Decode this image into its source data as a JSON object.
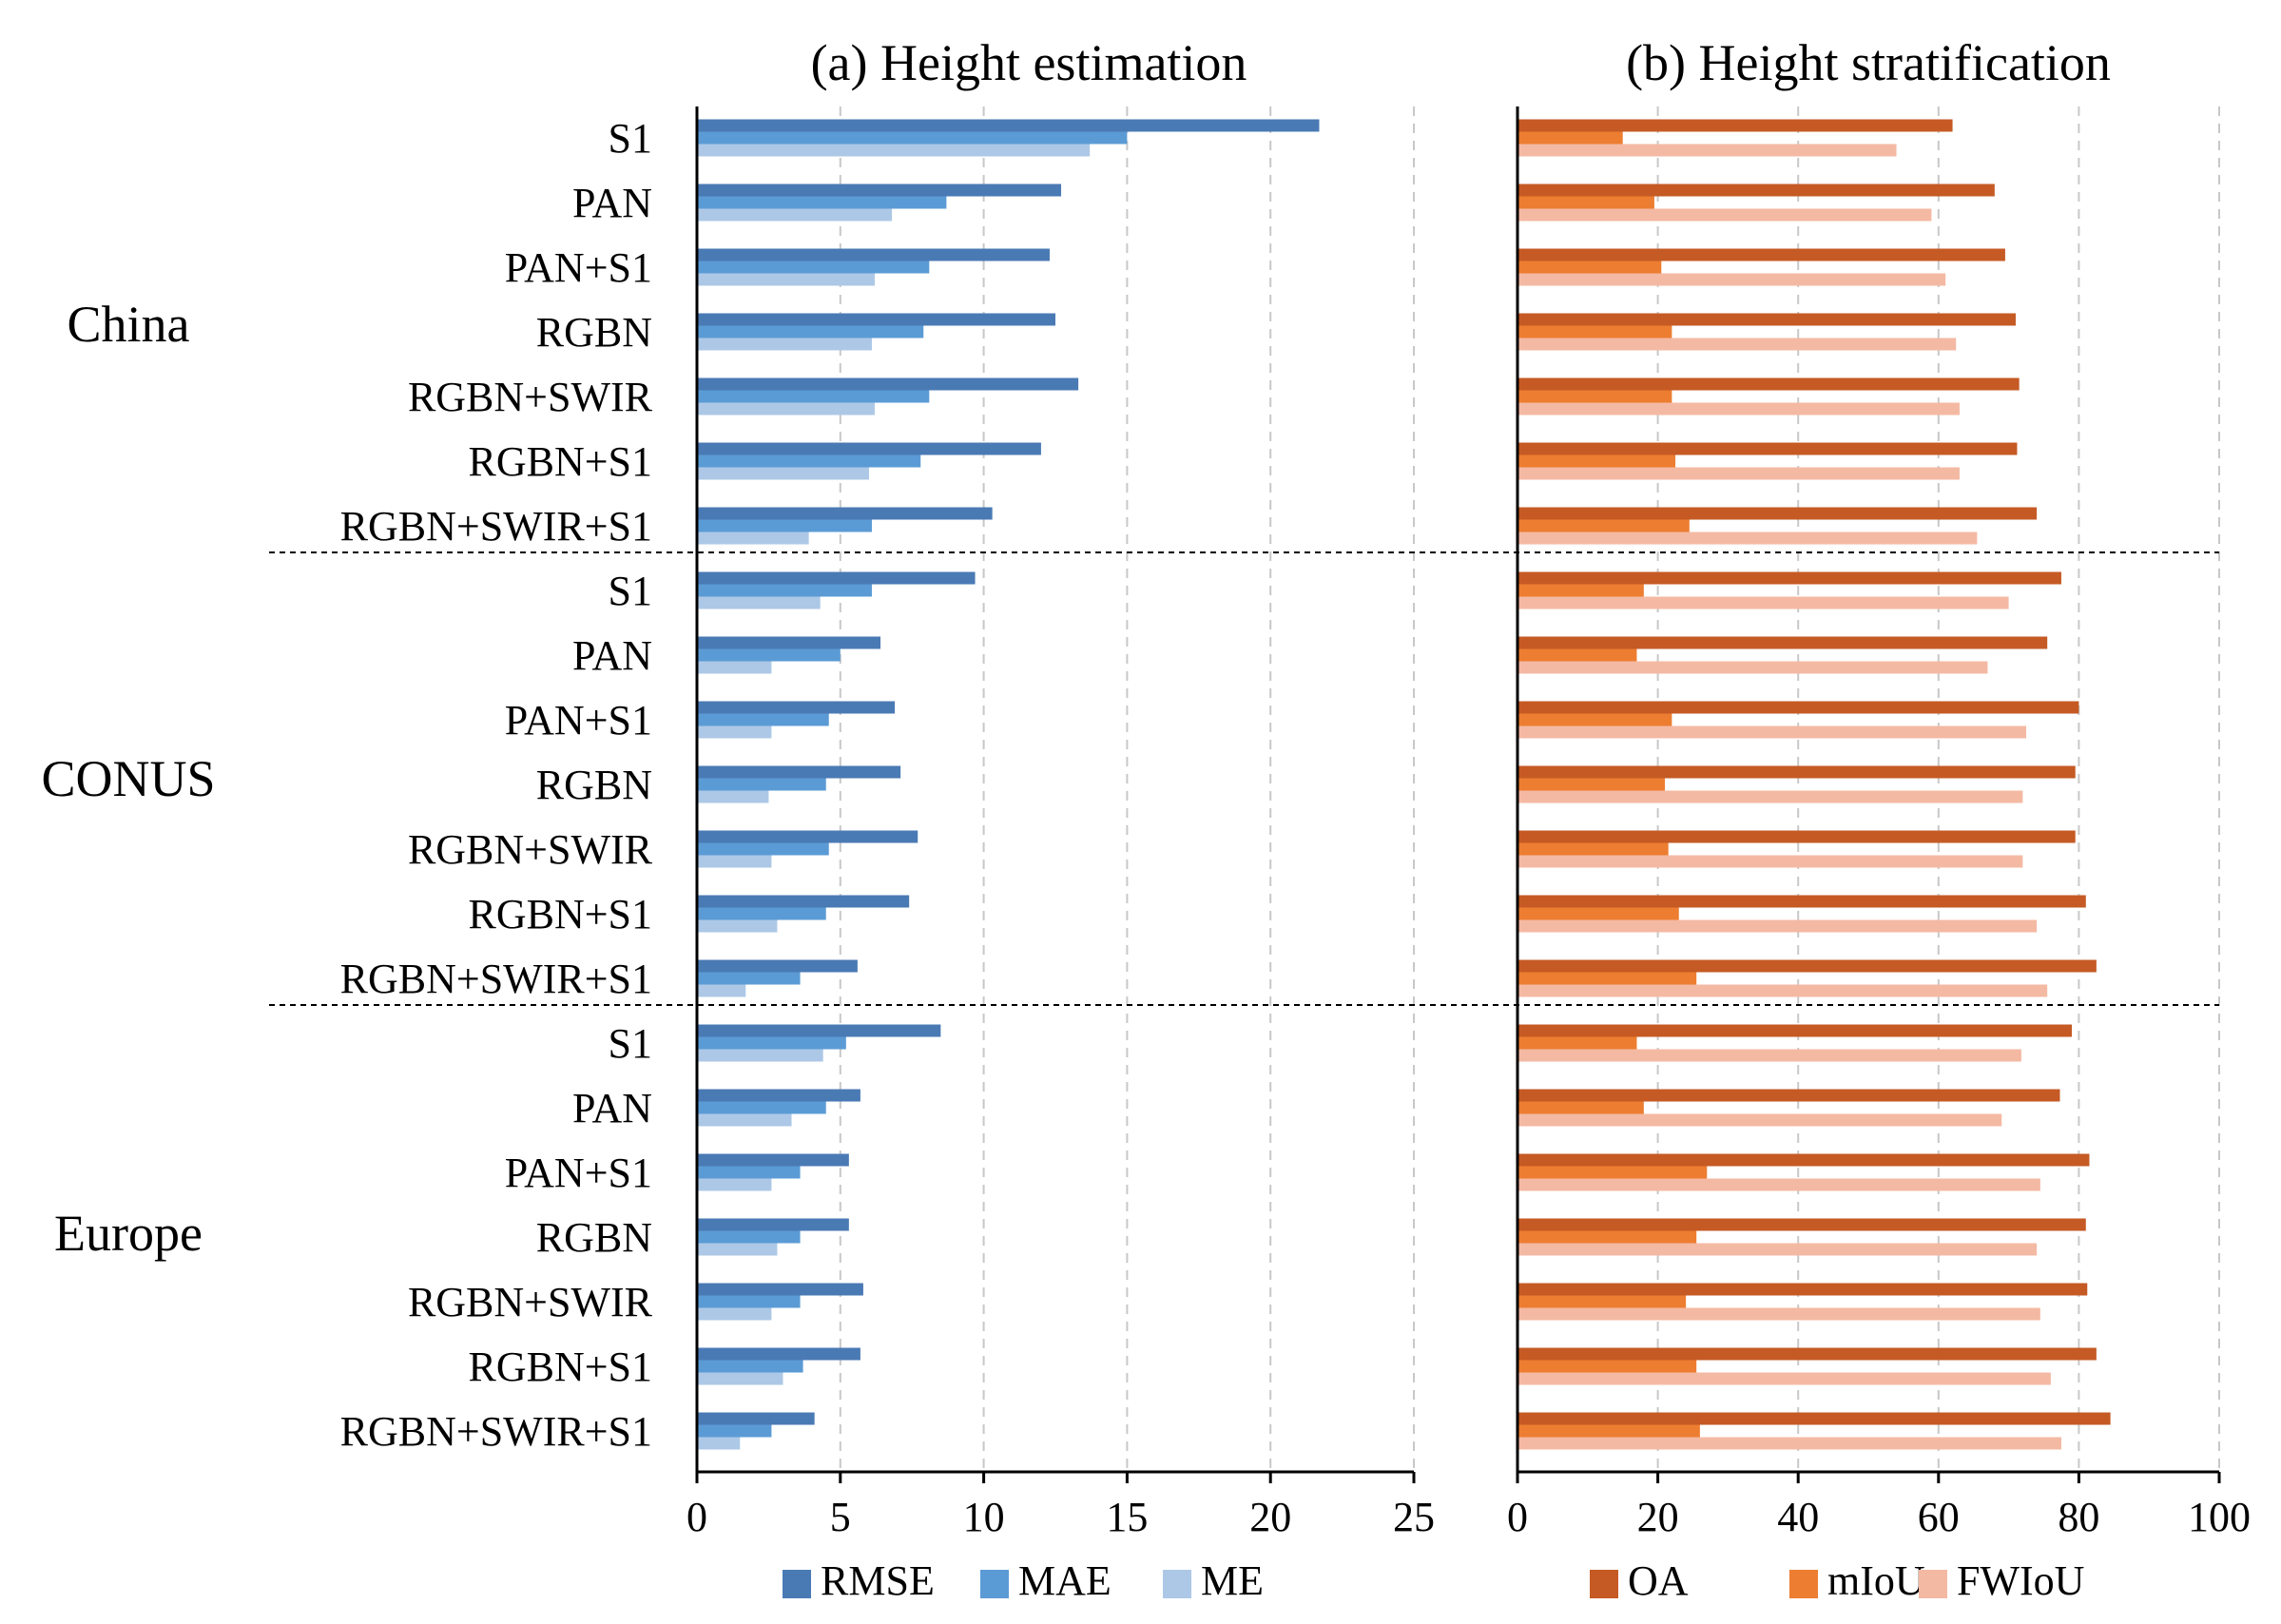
{
  "regions": [
    "China",
    "CONUS",
    "Europe"
  ],
  "chart_data": [
    {
      "type": "bar",
      "orientation": "horizontal",
      "title": "(a) Height estimation",
      "xlim": [
        0,
        25
      ],
      "xticks": [
        0,
        5,
        10,
        15,
        20,
        25
      ],
      "grid": true,
      "legend_position": "bottom",
      "categories": [
        "S1",
        "PAN",
        "PAN+S1",
        "RGBN",
        "RGBN+SWIR",
        "RGBN+S1",
        "RGBN+SWIR+S1"
      ],
      "groups": [
        "China",
        "CONUS",
        "Europe"
      ],
      "series": [
        {
          "name": "RMSE",
          "color": "#4a7ab4",
          "values": {
            "China": [
              21.7,
              12.7,
              12.3,
              12.5,
              13.3,
              12.0,
              10.3
            ],
            "CONUS": [
              9.7,
              6.4,
              6.9,
              7.1,
              7.7,
              7.4,
              5.6
            ],
            "Europe": [
              8.5,
              5.7,
              5.3,
              5.3,
              5.8,
              5.7,
              4.1
            ]
          }
        },
        {
          "name": "MAE",
          "color": "#5b9bd5",
          "values": {
            "China": [
              15.0,
              8.7,
              8.1,
              7.9,
              8.1,
              7.8,
              6.1
            ],
            "CONUS": [
              6.1,
              5.0,
              4.6,
              4.5,
              4.6,
              4.5,
              3.6
            ],
            "Europe": [
              5.2,
              4.5,
              3.6,
              3.6,
              3.6,
              3.7,
              2.6
            ]
          }
        },
        {
          "name": "ME",
          "color": "#adc8e6",
          "values": {
            "China": [
              13.7,
              6.8,
              6.2,
              6.1,
              6.2,
              6.0,
              3.9
            ],
            "CONUS": [
              4.3,
              2.6,
              2.6,
              2.5,
              2.6,
              2.8,
              1.7
            ],
            "Europe": [
              4.4,
              3.3,
              2.6,
              2.8,
              2.6,
              3.0,
              1.5
            ]
          }
        }
      ]
    },
    {
      "type": "bar",
      "orientation": "horizontal",
      "title": "(b) Height stratification",
      "xlim": [
        0,
        100
      ],
      "xticks": [
        0,
        20,
        40,
        60,
        80,
        100
      ],
      "grid": true,
      "legend_position": "bottom",
      "categories": [
        "S1",
        "PAN",
        "PAN+S1",
        "RGBN",
        "RGBN+SWIR",
        "RGBN+S1",
        "RGBN+SWIR+S1"
      ],
      "groups": [
        "China",
        "CONUS",
        "Europe"
      ],
      "series": [
        {
          "name": "OA",
          "color": "#c55a24",
          "values": {
            "China": [
              62.0,
              68.0,
              69.5,
              71.0,
              71.5,
              71.2,
              74.0
            ],
            "CONUS": [
              77.5,
              75.5,
              80.0,
              79.5,
              79.5,
              81.0,
              82.5
            ],
            "Europe": [
              79.0,
              77.3,
              81.5,
              81.0,
              81.2,
              82.5,
              84.5
            ]
          }
        },
        {
          "name": "mIoU",
          "color": "#ed7d31",
          "values": {
            "China": [
              15.0,
              19.5,
              20.5,
              22.0,
              22.0,
              22.5,
              24.5
            ],
            "CONUS": [
              18.0,
              17.0,
              22.0,
              21.0,
              21.5,
              23.0,
              25.5
            ],
            "Europe": [
              17.0,
              18.0,
              27.0,
              25.5,
              24.0,
              25.5,
              26.0
            ]
          }
        },
        {
          "name": "FWIoU",
          "color": "#f4b9a3",
          "values": {
            "China": [
              54.0,
              59.0,
              61.0,
              62.5,
              63.0,
              63.0,
              65.5
            ],
            "CONUS": [
              70.0,
              67.0,
              72.5,
              72.0,
              72.0,
              74.0,
              75.5
            ],
            "Europe": [
              71.8,
              69.0,
              74.5,
              74.0,
              74.5,
              76.0,
              77.5
            ]
          }
        }
      ]
    }
  ]
}
